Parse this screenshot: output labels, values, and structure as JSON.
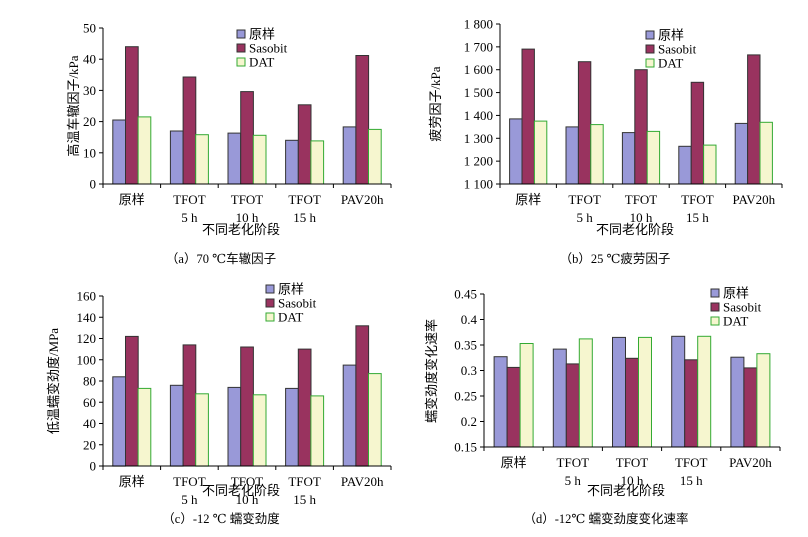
{
  "colors": {
    "原样": "#9999d8",
    "Sasobit": "#99335f",
    "DAT": "#f6f6cf",
    "DAT_edge": "#33aa33",
    "bar_edge": "#333333"
  },
  "chart_data": [
    {
      "id": "a",
      "type": "bar",
      "title": "（a）70 ℃车辙因子",
      "ylabel": "高温车辙因子/kPa",
      "xlabel": "不同老化阶段",
      "ylim": [
        0,
        50
      ],
      "yticks": [
        0,
        10,
        20,
        30,
        40,
        50
      ],
      "ytick_labels": [
        "0",
        "10",
        "20",
        "30",
        "40",
        "50"
      ],
      "categories": [
        [
          "原样"
        ],
        [
          "TFOT",
          "5 h"
        ],
        [
          "TFOT",
          "10 h"
        ],
        [
          "TFOT",
          "15 h"
        ],
        [
          "PAV20h"
        ]
      ],
      "series": [
        {
          "name": "原样",
          "values": [
            20.5,
            17,
            16.3,
            14,
            18.3
          ]
        },
        {
          "name": "Sasobit",
          "values": [
            44,
            34.3,
            29.6,
            25.4,
            41.2
          ]
        },
        {
          "name": "DAT",
          "values": [
            21.5,
            15.8,
            15.6,
            13.8,
            17.5
          ]
        }
      ],
      "legend_loc": "top-center"
    },
    {
      "id": "b",
      "type": "bar",
      "title": "（b）25 ℃疲劳因子",
      "ylabel": "疲劳因子/kPa",
      "xlabel": "不同老化阶段",
      "ylim": [
        1100,
        1800
      ],
      "yticks": [
        1100,
        1200,
        1300,
        1400,
        1500,
        1600,
        1700,
        1800
      ],
      "ytick_labels": [
        "1 100",
        "1 200",
        "1 300",
        "1 400",
        "1 500",
        "1 600",
        "1 700",
        "1 800"
      ],
      "categories": [
        [
          "原样"
        ],
        [
          "TFOT",
          "5 h"
        ],
        [
          "TFOT",
          "10 h"
        ],
        [
          "TFOT",
          "15 h"
        ],
        [
          "PAV20h"
        ]
      ],
      "series": [
        {
          "name": "原样",
          "values": [
            1385,
            1350,
            1325,
            1265,
            1365
          ]
        },
        {
          "name": "Sasobit",
          "values": [
            1690,
            1635,
            1600,
            1545,
            1665
          ]
        },
        {
          "name": "DAT",
          "values": [
            1375,
            1360,
            1330,
            1270,
            1370
          ]
        }
      ],
      "legend_loc": "top-right"
    },
    {
      "id": "c",
      "type": "bar",
      "title": "（c）-12 ℃ 蠕变劲度",
      "ylabel": "低温蠕变劲度/MPa",
      "xlabel": "不同老化阶段",
      "ylim": [
        0,
        160
      ],
      "yticks": [
        0,
        20,
        40,
        60,
        80,
        100,
        120,
        140,
        160
      ],
      "ytick_labels": [
        "0",
        "20",
        "40",
        "60",
        "80",
        "100",
        "120",
        "140",
        "160"
      ],
      "categories": [
        [
          "原样"
        ],
        [
          "TFOT",
          "5 h"
        ],
        [
          "TFOT",
          "10 h"
        ],
        [
          "TFOT",
          "15 h"
        ],
        [
          "PAV20h"
        ]
      ],
      "series": [
        {
          "name": "原样",
          "values": [
            84,
            76,
            74,
            73,
            95
          ]
        },
        {
          "name": "Sasobit",
          "values": [
            122,
            114,
            112,
            110,
            132
          ]
        },
        {
          "name": "DAT",
          "values": [
            73,
            68,
            67,
            66,
            87
          ]
        }
      ],
      "legend_loc": "top-right"
    },
    {
      "id": "d",
      "type": "bar",
      "title": "（d）-12℃ 蠕变劲度变化速率",
      "ylabel": "蠕变劲度变化速率",
      "xlabel": "不同老化阶段",
      "ylim": [
        0.15,
        0.45
      ],
      "yticks": [
        0.15,
        0.2,
        0.25,
        0.3,
        0.35,
        0.4,
        0.45
      ],
      "ytick_labels": [
        "0.15",
        "0.2",
        "0.25",
        "0.3",
        "0.35",
        "0.4",
        "0.45"
      ],
      "categories": [
        [
          "原样"
        ],
        [
          "TFOT",
          "5 h"
        ],
        [
          "TFOT",
          "10 h"
        ],
        [
          "TFOT",
          "15 h"
        ],
        [
          "PAV20h"
        ]
      ],
      "series": [
        {
          "name": "原样",
          "values": [
            0.327,
            0.342,
            0.365,
            0.367,
            0.326
          ]
        },
        {
          "name": "Sasobit",
          "values": [
            0.306,
            0.313,
            0.324,
            0.321,
            0.305
          ]
        },
        {
          "name": "DAT",
          "values": [
            0.353,
            0.362,
            0.365,
            0.367,
            0.333
          ]
        }
      ],
      "legend_loc": "top-right"
    }
  ]
}
